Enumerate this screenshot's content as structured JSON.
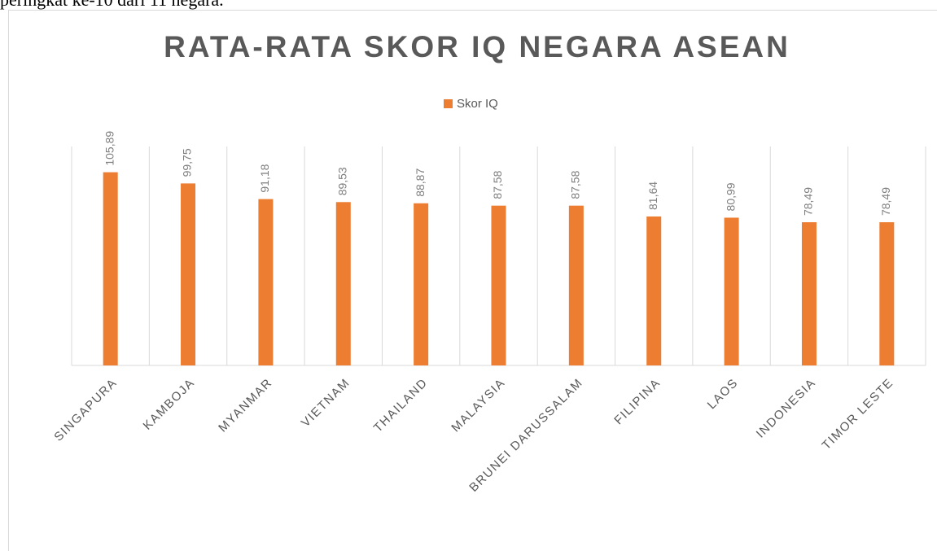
{
  "page_text": "peringkat ke-10 dari 11 negara.",
  "chart_data": {
    "type": "bar",
    "title": "RATA-RATA SKOR IQ NEGARA ASEAN",
    "categories": [
      "SINGAPURA",
      "KAMBOJA",
      "MYANMAR",
      "VIETNAM",
      "THAILAND",
      "MALAYSIA",
      "BRUNEI DARUSSALAM",
      "FILIPINA",
      "LAOS",
      "INDONESIA",
      "TIMOR LESTE"
    ],
    "series": [
      {
        "name": "Skor IQ",
        "color": "#ed7d31",
        "values": [
          105.89,
          99.75,
          91.18,
          89.53,
          88.87,
          87.58,
          87.58,
          81.64,
          80.99,
          78.49,
          78.49
        ],
        "value_labels": [
          "105,89",
          "99,75",
          "91,18",
          "89,53",
          "88,87",
          "87,58",
          "87,58",
          "81,64",
          "80,99",
          "78,49",
          "78,49"
        ]
      }
    ],
    "ylim": [
      0,
      120
    ],
    "grid": true,
    "legend": "top"
  }
}
